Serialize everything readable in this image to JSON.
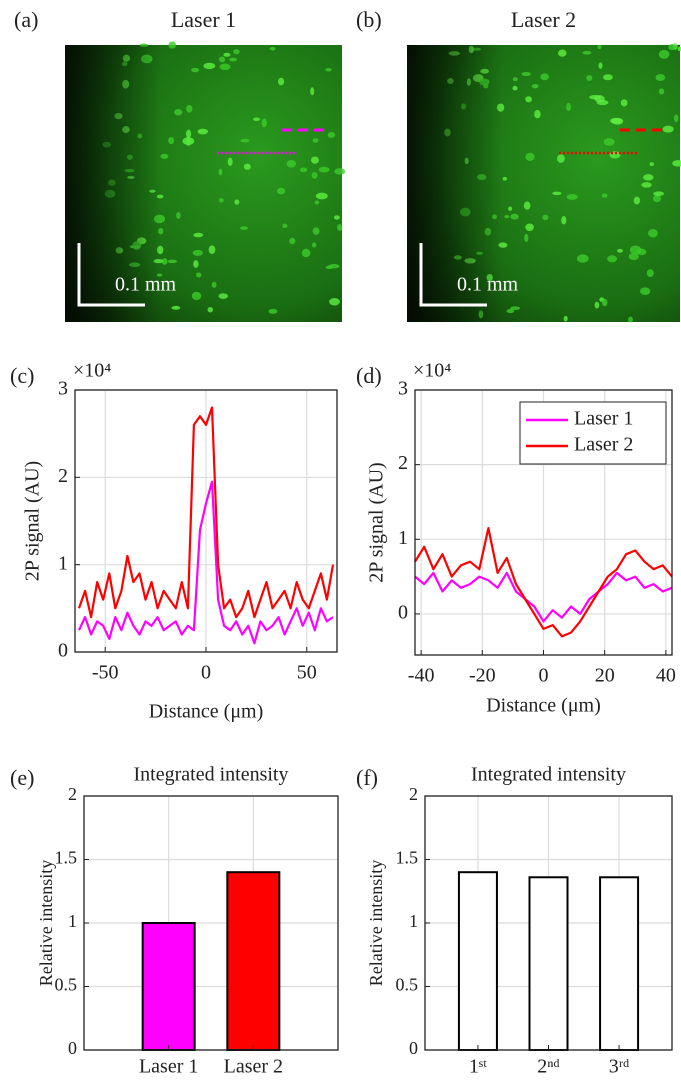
{
  "chart_data": [
    {
      "type": "image",
      "panel": "(a)",
      "title": "Laser 1",
      "scale_bar_label": "0.1 mm",
      "marker_color": "#ff00ff"
    },
    {
      "type": "image",
      "panel": "(b)",
      "title": "Laser 2",
      "scale_bar_label": "0.1 mm",
      "marker_color": "#ff0000"
    },
    {
      "type": "line",
      "panel": "(c)",
      "x_label": "Distance (μm)",
      "y_label": "2P signal (AU)",
      "y_scale_label": "×10⁴",
      "xlim": [
        -65,
        65
      ],
      "xticks": [
        -50,
        0,
        50
      ],
      "ylim": [
        0,
        3
      ],
      "yticks": [
        0,
        1,
        2,
        3
      ],
      "grid": true,
      "x": [
        -63,
        -60,
        -57,
        -54,
        -51,
        -48,
        -45,
        -42,
        -39,
        -36,
        -33,
        -30,
        -27,
        -24,
        -21,
        -18,
        -15,
        -12,
        -9,
        -6,
        -3,
        0,
        3,
        6,
        9,
        12,
        15,
        18,
        21,
        24,
        27,
        30,
        33,
        36,
        39,
        42,
        45,
        48,
        51,
        54,
        57,
        60,
        63
      ],
      "series": [
        {
          "name": "Laser 1",
          "color": "#ff00ff",
          "values": [
            0.25,
            0.4,
            0.2,
            0.35,
            0.3,
            0.15,
            0.4,
            0.25,
            0.45,
            0.3,
            0.2,
            0.35,
            0.3,
            0.4,
            0.25,
            0.3,
            0.35,
            0.2,
            0.3,
            0.25,
            1.4,
            1.7,
            1.95,
            0.6,
            0.3,
            0.25,
            0.35,
            0.2,
            0.3,
            0.1,
            0.35,
            0.25,
            0.3,
            0.4,
            0.2,
            0.35,
            0.5,
            0.3,
            0.45,
            0.25,
            0.5,
            0.35,
            0.4
          ]
        },
        {
          "name": "Laser 2",
          "color": "#ff0000",
          "values": [
            0.5,
            0.7,
            0.4,
            0.8,
            0.6,
            0.9,
            0.5,
            0.7,
            1.1,
            0.8,
            0.9,
            0.6,
            0.8,
            0.5,
            0.7,
            0.6,
            0.5,
            0.8,
            0.5,
            2.6,
            2.7,
            2.6,
            2.8,
            1.0,
            0.5,
            0.6,
            0.4,
            0.5,
            0.7,
            0.4,
            0.6,
            0.8,
            0.5,
            0.6,
            0.7,
            0.5,
            0.8,
            0.6,
            0.5,
            0.7,
            0.9,
            0.6,
            1.0
          ]
        }
      ]
    },
    {
      "type": "line",
      "panel": "(d)",
      "x_label": "Distance (μm)",
      "y_label": "2P signal (AU)",
      "y_scale_label": "×10⁴",
      "xlim": [
        -42,
        42
      ],
      "xticks": [
        -40,
        -20,
        0,
        20,
        40
      ],
      "ylim": [
        -0.55,
        3
      ],
      "yticks": [
        0,
        1,
        2,
        3
      ],
      "grid": true,
      "legend": "top-right",
      "x": [
        -42,
        -39,
        -36,
        -33,
        -30,
        -27,
        -24,
        -21,
        -18,
        -15,
        -12,
        -9,
        -6,
        -3,
        0,
        3,
        6,
        9,
        12,
        15,
        18,
        21,
        24,
        27,
        30,
        33,
        36,
        39,
        42
      ],
      "series": [
        {
          "name": "Laser 1",
          "color": "#ff00ff",
          "values": [
            0.5,
            0.4,
            0.55,
            0.3,
            0.45,
            0.35,
            0.4,
            0.5,
            0.45,
            0.35,
            0.55,
            0.3,
            0.2,
            0.1,
            -0.1,
            0.05,
            -0.05,
            0.1,
            0.0,
            0.2,
            0.3,
            0.4,
            0.55,
            0.45,
            0.5,
            0.35,
            0.4,
            0.3,
            0.35
          ]
        },
        {
          "name": "Laser 2",
          "color": "#ff0000",
          "values": [
            0.7,
            0.9,
            0.6,
            0.8,
            0.5,
            0.65,
            0.7,
            0.6,
            1.15,
            0.55,
            0.75,
            0.4,
            0.2,
            0.0,
            -0.2,
            -0.15,
            -0.3,
            -0.25,
            -0.1,
            0.1,
            0.3,
            0.5,
            0.6,
            0.8,
            0.85,
            0.7,
            0.6,
            0.65,
            0.5
          ]
        }
      ]
    },
    {
      "type": "bar",
      "panel": "(e)",
      "title": "Integrated intensity",
      "y_label": "Relative intensity",
      "categories": [
        "Laser 1",
        "Laser 2"
      ],
      "values": [
        1,
        1.4
      ],
      "colors": [
        "#ff00ff",
        "#ff0000"
      ],
      "ylim": [
        0,
        2
      ],
      "yticks": [
        0,
        0.5,
        1,
        1.5,
        2
      ],
      "grid": true
    },
    {
      "type": "bar",
      "panel": "(f)",
      "title": "Integrated intensity",
      "y_label": "Relative intensity",
      "categories": [
        "1ˢᵗ",
        "2ⁿᵈ",
        "3ʳᵈ"
      ],
      "values": [
        1.4,
        1.36,
        1.36
      ],
      "colors": [
        "#ffffff",
        "#ffffff",
        "#ffffff"
      ],
      "ylim": [
        0,
        2
      ],
      "yticks": [
        0,
        0.5,
        1,
        1.5,
        2
      ],
      "grid": true
    }
  ]
}
